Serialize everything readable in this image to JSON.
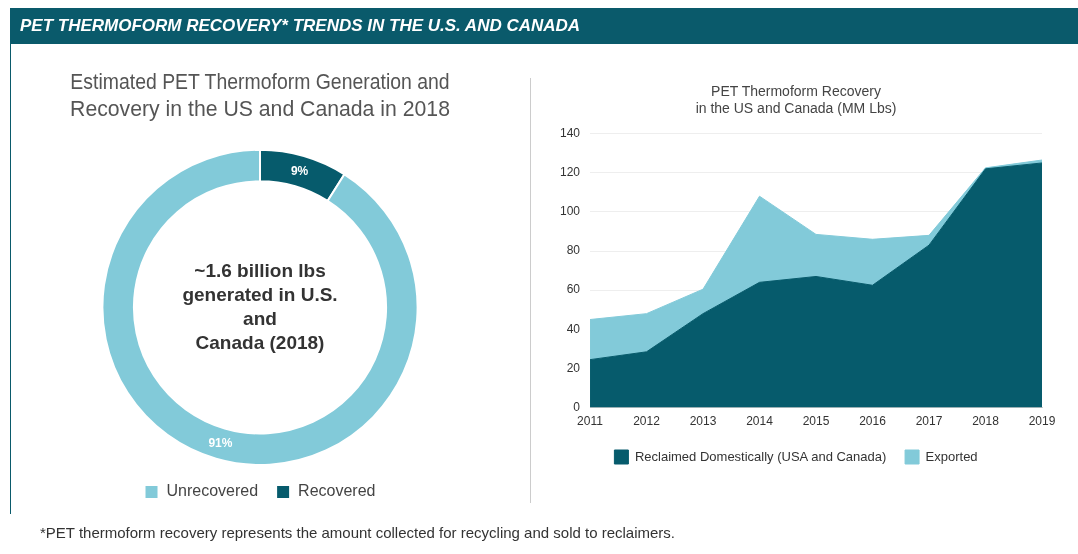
{
  "chart_data": [
    {
      "type": "other",
      "title": "PET THERMOFORM RECOVERY* TRENDS IN THE U.S. AND CANADA",
      "annotations": [
        "*PET thermoform recovery represents the amount collected for recycling and sold to reclaimers."
      ]
    },
    {
      "type": "donut",
      "title": "Estimated PET Thermoform Generation and\nRecovery in the US and Canada in 2018",
      "categories": [
        "Recovered",
        "Unrecovered"
      ],
      "values": [
        9,
        91
      ],
      "colors": [
        "#065b6c",
        "#82cad9"
      ],
      "value_labels": [
        "9%",
        "91%"
      ],
      "legend": "bottom",
      "annotations": [
        "~1.6 billion lbs\ngenerated in U.S.\nand\nCanada (2018)"
      ]
    },
    {
      "type": "area",
      "title": "PET Thermoform Recovery\nin the US and Canada (MM Lbs)",
      "categories": [
        "2011",
        "2012",
        "2013",
        "2014",
        "2015",
        "2016",
        "2017",
        "2018",
        "2019"
      ],
      "stacked": true,
      "series": [
        {
          "name": "Reclaimed Domestically (USA and Canada)",
          "color": "#065b6c",
          "values": [
            24.5,
            28.5,
            48,
            64,
            67,
            62.5,
            83,
            122,
            125
          ]
        },
        {
          "name": "Exported",
          "color": "#82cad9",
          "values": [
            20.5,
            19.5,
            12.5,
            44,
            21.5,
            23.5,
            5,
            0.5,
            1.5
          ]
        }
      ],
      "ylim": [
        0,
        140
      ],
      "yticks": [
        0,
        20,
        40,
        60,
        80,
        100,
        120,
        140
      ],
      "grid": "y",
      "legend": "bottom",
      "marker": "none"
    }
  ]
}
